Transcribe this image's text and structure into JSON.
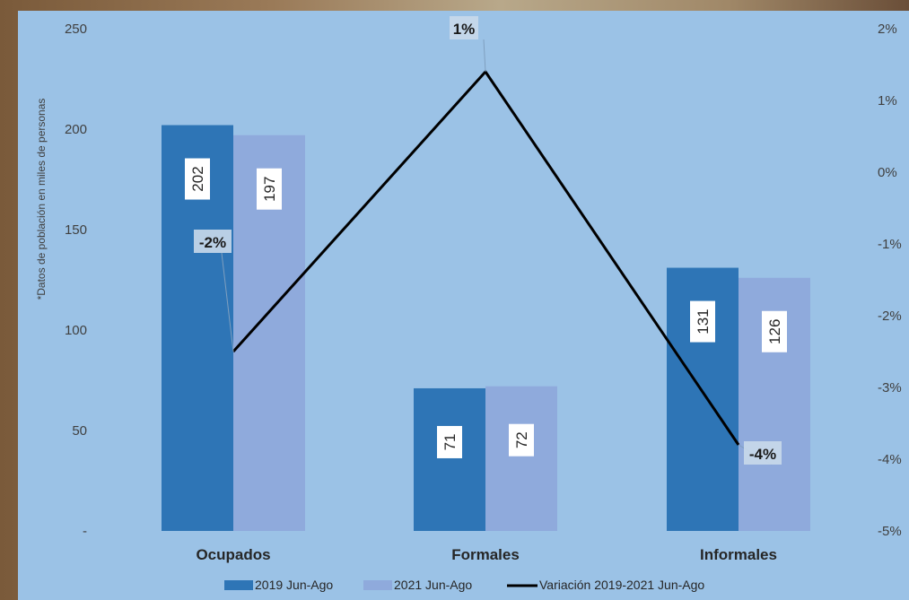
{
  "chart_data": {
    "type": "bar",
    "categories": [
      "Ocupados",
      "Formales",
      "Informales"
    ],
    "series": [
      {
        "name": "2019 Jun-Ago",
        "values": [
          202,
          71,
          131
        ],
        "color": "#2e75b6",
        "axis": "left"
      },
      {
        "name": "2021 Jun-Ago",
        "values": [
          197,
          72,
          126
        ],
        "color": "#8faadc",
        "axis": "left"
      }
    ],
    "line_series": {
      "name": "Variación 2019-2021 Jun-Ago",
      "values": [
        -2.5,
        1.4,
        -3.8
      ],
      "labels": [
        "-2%",
        "1%",
        "-4%"
      ],
      "color": "#000000",
      "axis": "right"
    },
    "ylabel": "*Datos de población en miles de personas",
    "ylim": [
      0,
      250
    ],
    "y_ticks": [
      "-",
      "50",
      "100",
      "150",
      "200",
      "250"
    ],
    "y2lim": [
      -5,
      2
    ],
    "y2_ticks": [
      "-5%",
      "-4%",
      "-3%",
      "-2%",
      "-1%",
      "0%",
      "1%",
      "2%"
    ],
    "bar_data_labels": [
      [
        "202",
        "71",
        "131"
      ],
      [
        "197",
        "72",
        "126"
      ]
    ],
    "legend_position": "bottom"
  }
}
